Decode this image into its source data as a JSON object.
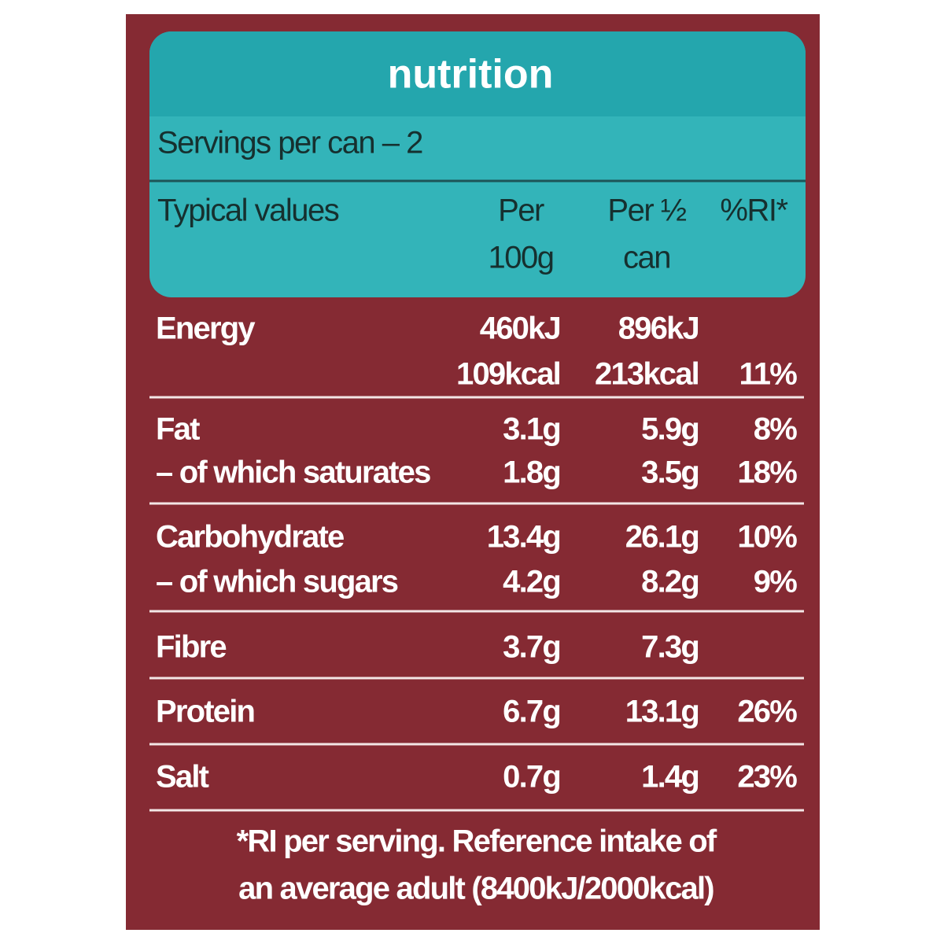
{
  "header": {
    "title": "nutrition",
    "servings": "Servings per can – 2",
    "columns": [
      [
        "Typical values"
      ],
      [
        "Per",
        "100g"
      ],
      [
        "Per ½",
        "can"
      ],
      [
        "%RI*"
      ]
    ]
  },
  "table": {
    "rows": [
      {
        "lines": [
          [
            "Energy",
            "460kJ",
            "896kJ",
            null
          ],
          [
            null,
            "109kcal",
            "213kcal",
            "11%"
          ]
        ]
      },
      {
        "lines": [
          [
            "Fat",
            "3.1g",
            "5.9g",
            "8%"
          ],
          [
            "– of which saturates",
            "1.8g",
            "3.5g",
            "18%"
          ]
        ]
      },
      {
        "lines": [
          [
            "Carbohydrate",
            "13.4g",
            "26.1g",
            "10%"
          ],
          [
            "– of which sugars",
            "4.2g",
            "8.2g",
            "9%"
          ]
        ]
      },
      {
        "lines": [
          [
            "Fibre",
            "3.7g",
            "7.3g",
            null
          ]
        ]
      },
      {
        "lines": [
          [
            "Protein",
            "6.7g",
            "13.1g",
            "26%"
          ]
        ]
      },
      {
        "lines": [
          [
            "Salt",
            "0.7g",
            "1.4g",
            "23%"
          ]
        ]
      }
    ]
  },
  "footer": [
    "*RI per serving. Reference intake of",
    "an average adult (8400kJ/2000kcal)"
  ]
}
